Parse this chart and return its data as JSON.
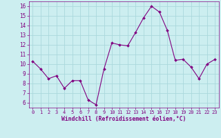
{
  "x": [
    0,
    1,
    2,
    3,
    4,
    5,
    6,
    7,
    8,
    9,
    10,
    11,
    12,
    13,
    14,
    15,
    16,
    17,
    18,
    19,
    20,
    21,
    22,
    23
  ],
  "y": [
    10.3,
    9.5,
    8.5,
    8.8,
    7.5,
    8.3,
    8.3,
    6.3,
    5.8,
    9.5,
    12.2,
    12.0,
    11.9,
    13.3,
    14.8,
    16.0,
    15.4,
    13.5,
    10.4,
    10.5,
    9.7,
    8.5,
    10.0,
    10.5
  ],
  "line_color": "#800080",
  "marker_color": "#800080",
  "bg_color": "#cceef0",
  "grid_color": "#aad8dc",
  "xlabel": "Windchill (Refroidissement éolien,°C)",
  "xlabel_color": "#800080",
  "tick_color": "#800080",
  "xlim": [
    -0.5,
    23.5
  ],
  "ylim": [
    5.5,
    16.5
  ],
  "yticks": [
    6,
    7,
    8,
    9,
    10,
    11,
    12,
    13,
    14,
    15,
    16
  ],
  "xticks": [
    0,
    1,
    2,
    3,
    4,
    5,
    6,
    7,
    8,
    9,
    10,
    11,
    12,
    13,
    14,
    15,
    16,
    17,
    18,
    19,
    20,
    21,
    22,
    23
  ],
  "xtick_labels": [
    "0",
    "1",
    "2",
    "3",
    "4",
    "5",
    "6",
    "7",
    "8",
    "9",
    "10",
    "11",
    "12",
    "13",
    "14",
    "15",
    "16",
    "17",
    "18",
    "19",
    "20",
    "21",
    "22",
    "23"
  ]
}
